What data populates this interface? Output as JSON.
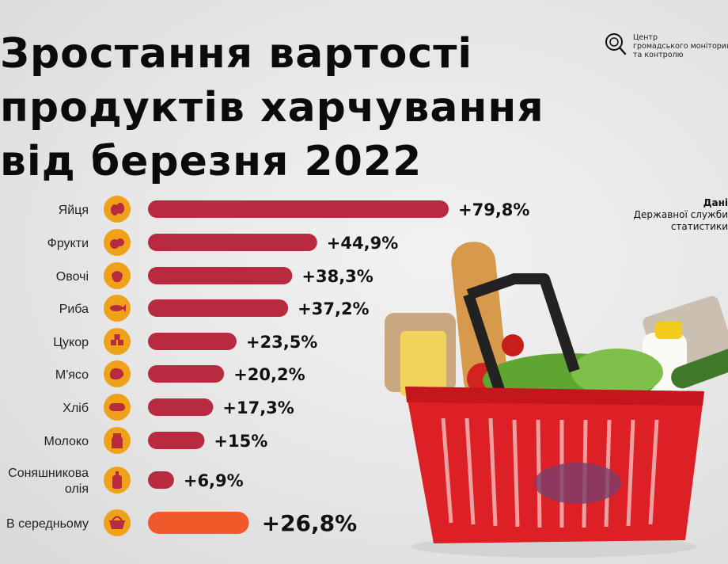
{
  "title_lines": [
    "Зростання вартості",
    "продуктів харчування",
    "від березня 2022"
  ],
  "logo": {
    "lines": [
      "Центр",
      "громадського моніторингу",
      "та контролю"
    ]
  },
  "source": {
    "lines": [
      "Дані",
      "Державної служби",
      "статистики"
    ]
  },
  "colors": {
    "bar": "#b82a40",
    "average_bar": "#f0592a",
    "icon": "#f0a11a",
    "icon_ink": "#b82a40"
  },
  "chart_data": {
    "type": "bar",
    "orientation": "horizontal",
    "title": "Зростання вартості продуктів харчування від березня 2022",
    "categories": [
      [
        "Яйця"
      ],
      [
        "Фрукти"
      ],
      [
        "Овочі"
      ],
      [
        "Риба"
      ],
      [
        "Цукор"
      ],
      [
        "М'ясо"
      ],
      [
        "Хліб"
      ],
      [
        "Молоко"
      ],
      [
        "Соняшникова",
        "олія"
      ],
      [
        "В середньому"
      ]
    ],
    "values": [
      79.8,
      44.9,
      38.3,
      37.2,
      23.5,
      20.2,
      17.3,
      15,
      6.9,
      26.8
    ],
    "value_labels": [
      "+79,8%",
      "+44,9%",
      "+38,3%",
      "+37,2%",
      "+23,5%",
      "+20,2%",
      "+17,3%",
      "+15%",
      "+6,9%",
      "+26,8%"
    ],
    "icons": [
      "eggs-icon",
      "fruit-icon",
      "vegetables-icon",
      "fish-icon",
      "sugar-icon",
      "meat-icon",
      "bread-icon",
      "milk-icon",
      "oil-bottle-icon",
      "basket-icon"
    ],
    "highlight_index": 9,
    "grid": false,
    "legend": false
  }
}
